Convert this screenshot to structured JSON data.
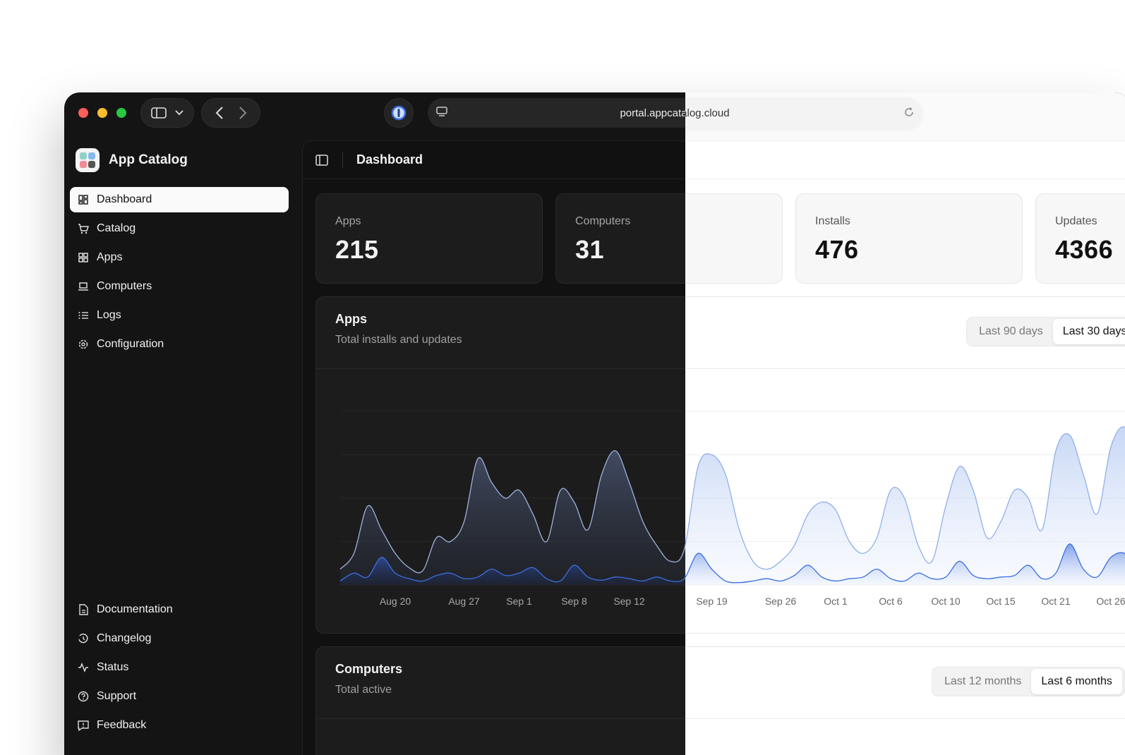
{
  "browser": {
    "url": "portal.appcatalog.cloud"
  },
  "app": {
    "name": "App Catalog"
  },
  "nav": {
    "primary": [
      "Dashboard",
      "Catalog",
      "Apps",
      "Computers",
      "Logs",
      "Configuration"
    ],
    "secondary": [
      "Documentation",
      "Changelog",
      "Status",
      "Support",
      "Feedback"
    ],
    "active": "Dashboard"
  },
  "header": {
    "title": "Dashboard"
  },
  "stats": [
    {
      "label": "Apps",
      "value": "215"
    },
    {
      "label": "Computers",
      "value": "31"
    },
    {
      "label": "Installs",
      "value": "476"
    },
    {
      "label": "Updates",
      "value": "4366"
    }
  ],
  "apps_panel": {
    "title": "Apps",
    "subtitle": "Total installs and updates",
    "tabs": [
      "Last 90 days",
      "Last 30 days"
    ],
    "active_tab": "Last 30 days"
  },
  "computers_panel": {
    "title": "Computers",
    "subtitle": "Total active",
    "tabs": [
      "Last 12 months",
      "Last 6 months"
    ],
    "active_tab": "Last 6 months"
  },
  "colors": {
    "accent": "#3b6fe0",
    "dark_bg": "#141414",
    "light_bg": "#fafafa"
  },
  "chart_data": {
    "type": "area",
    "title": "Apps",
    "subtitle": "Total installs and updates",
    "x_tick_labels": [
      "Aug 20",
      "Aug 27",
      "Sep 1",
      "Sep 8",
      "Sep 12",
      "Sep 19",
      "Sep 26",
      "Oct 1",
      "Oct 6",
      "Oct 10",
      "Oct 15",
      "Oct 21",
      "Oct 26"
    ],
    "x_tick_index": [
      4,
      9,
      13,
      17,
      21,
      27,
      32,
      36,
      40,
      44,
      48,
      52,
      56
    ],
    "series": [
      {
        "name": "",
        "values": [
          20,
          40,
          100,
          70,
          40,
          22,
          18,
          60,
          55,
          80,
          160,
          130,
          110,
          120,
          90,
          55,
          120,
          105,
          70,
          140,
          170,
          130,
          80,
          50,
          30,
          45,
          150,
          165,
          140,
          70,
          30,
          20,
          30,
          50,
          90,
          105,
          95,
          55,
          40,
          60,
          120,
          110,
          50,
          30,
          100,
          150,
          120,
          60,
          80,
          120,
          110,
          70,
          170,
          190,
          140,
          90,
          175,
          200,
          160
        ]
      },
      {
        "name": "",
        "values": [
          5,
          15,
          10,
          35,
          15,
          8,
          5,
          12,
          15,
          8,
          10,
          20,
          12,
          15,
          22,
          8,
          5,
          25,
          10,
          6,
          10,
          8,
          5,
          10,
          5,
          8,
          40,
          20,
          5,
          3,
          5,
          8,
          5,
          12,
          25,
          10,
          5,
          8,
          10,
          20,
          8,
          5,
          15,
          8,
          10,
          30,
          12,
          8,
          10,
          12,
          25,
          8,
          15,
          52,
          20,
          10,
          35,
          40,
          20
        ]
      }
    ]
  }
}
